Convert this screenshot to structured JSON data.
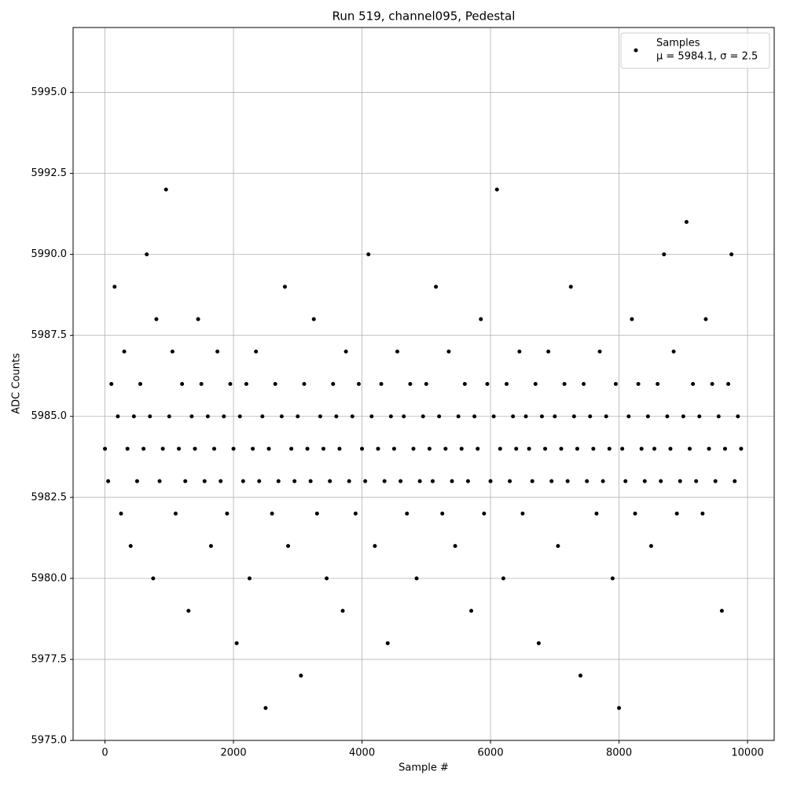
{
  "chart_data": {
    "type": "scatter",
    "title": "Run 519, channel095, Pedestal",
    "xlabel": "Sample #",
    "ylabel": "ADC Counts",
    "xlim": [
      -496,
      10415
    ],
    "ylim": [
      5975,
      5997
    ],
    "xticks": [
      0,
      2000,
      4000,
      6000,
      8000,
      10000
    ],
    "yticks": [
      {
        "value": 5975,
        "label": "5975.0"
      },
      {
        "value": 5977.5,
        "label": "5977.5"
      },
      {
        "value": 5980,
        "label": "5980.0"
      },
      {
        "value": 5982.5,
        "label": "5982.5"
      },
      {
        "value": 5985,
        "label": "5985.0"
      },
      {
        "value": 5987.5,
        "label": "5987.5"
      },
      {
        "value": 5990,
        "label": "5990.0"
      },
      {
        "value": 5992.5,
        "label": "5992.5"
      },
      {
        "value": 5995,
        "label": "5995.0"
      }
    ],
    "grid": true,
    "legend": "upper right",
    "annotation": "μ = 5984.1, σ = 2.5",
    "series": [
      {
        "name": "Samples",
        "color": "#000000",
        "x": [
          0,
          50,
          100,
          150,
          200,
          250,
          300,
          350,
          400,
          450,
          500,
          550,
          600,
          650,
          700,
          750,
          800,
          850,
          900,
          950,
          1000,
          1050,
          1100,
          1150,
          1200,
          1250,
          1300,
          1350,
          1400,
          1450,
          1500,
          1550,
          1600,
          1650,
          1700,
          1750,
          1800,
          1850,
          1900,
          1950,
          2000,
          2050,
          2100,
          2150,
          2200,
          2250,
          2300,
          2350,
          2400,
          2450,
          2500,
          2550,
          2600,
          2650,
          2700,
          2750,
          2800,
          2850,
          2900,
          2950,
          3000,
          3050,
          3100,
          3150,
          3200,
          3250,
          3300,
          3350,
          3400,
          3450,
          3500,
          3550,
          3600,
          3650,
          3700,
          3750,
          3800,
          3850,
          3900,
          3950,
          4000,
          4050,
          4100,
          4150,
          4200,
          4250,
          4300,
          4350,
          4400,
          4450,
          4500,
          4550,
          4600,
          4650,
          4700,
          4750,
          4800,
          4850,
          4900,
          4950,
          5000,
          5050,
          5100,
          5150,
          5200,
          5250,
          5300,
          5350,
          5400,
          5450,
          5500,
          5550,
          5600,
          5650,
          5700,
          5750,
          5800,
          5850,
          5900,
          5950,
          6000,
          6050,
          6100,
          6150,
          6200,
          6250,
          6300,
          6350,
          6400,
          6450,
          6500,
          6550,
          6600,
          6650,
          6700,
          6750,
          6800,
          6850,
          6900,
          6950,
          7000,
          7050,
          7100,
          7150,
          7200,
          7250,
          7300,
          7350,
          7400,
          7450,
          7500,
          7550,
          7600,
          7650,
          7700,
          7750,
          7800,
          7850,
          7900,
          7950,
          8000,
          8050,
          8100,
          8150,
          8200,
          8250,
          8300,
          8350,
          8400,
          8450,
          8500,
          8550,
          8600,
          8650,
          8700,
          8750,
          8800,
          8850,
          8900,
          8950,
          9000,
          9050,
          9100,
          9150,
          9200,
          9250,
          9300,
          9350,
          9400,
          9450,
          9500,
          9550,
          9600,
          9650,
          9700,
          9750,
          9800,
          9850,
          9900
        ],
        "values": [
          5984,
          5983,
          5986,
          5989,
          5985,
          5982,
          5987,
          5984,
          5981,
          5985,
          5983,
          5986,
          5984,
          5990,
          5985,
          5980,
          5988,
          5983,
          5984,
          5992,
          5985,
          5987,
          5982,
          5984,
          5986,
          5983,
          5979,
          5985,
          5984,
          5988,
          5986,
          5983,
          5985,
          5981,
          5984,
          5987,
          5983,
          5985,
          5982,
          5986,
          5984,
          5978,
          5985,
          5983,
          5986,
          5980,
          5984,
          5987,
          5983,
          5985,
          5976,
          5984,
          5982,
          5986,
          5983,
          5985,
          5989,
          5981,
          5984,
          5983,
          5985,
          5977,
          5986,
          5984,
          5983,
          5988,
          5982,
          5985,
          5984,
          5980,
          5983,
          5986,
          5985,
          5984,
          5979,
          5987,
          5983,
          5985,
          5982,
          5986,
          5984,
          5983,
          5990,
          5985,
          5981,
          5984,
          5986,
          5983,
          5978,
          5985,
          5984,
          5987,
          5983,
          5985,
          5982,
          5986,
          5984,
          5980,
          5983,
          5985,
          5986,
          5984,
          5983,
          5989,
          5985,
          5982,
          5984,
          5987,
          5983,
          5981,
          5985,
          5984,
          5986,
          5983,
          5979,
          5985,
          5984,
          5988,
          5982,
          5986,
          5983,
          5985,
          5992,
          5984,
          5980,
          5986,
          5983,
          5985,
          5984,
          5987,
          5982,
          5985,
          5984,
          5983,
          5986,
          5978,
          5985,
          5984,
          5987,
          5983,
          5985,
          5981,
          5984,
          5986,
          5983,
          5989,
          5985,
          5984,
          5977,
          5986,
          5983,
          5985,
          5984,
          5982,
          5987,
          5983,
          5985,
          5984,
          5980,
          5986,
          5976,
          5984,
          5983,
          5985,
          5988,
          5982,
          5986,
          5984,
          5983,
          5985,
          5981,
          5984,
          5986,
          5983,
          5990,
          5985,
          5984,
          5987,
          5982,
          5983,
          5985,
          5991,
          5984,
          5986,
          5983,
          5985,
          5982,
          5988,
          5984,
          5986,
          5983,
          5985,
          5979,
          5984,
          5986,
          5990,
          5983,
          5985,
          5984
        ]
      }
    ]
  }
}
